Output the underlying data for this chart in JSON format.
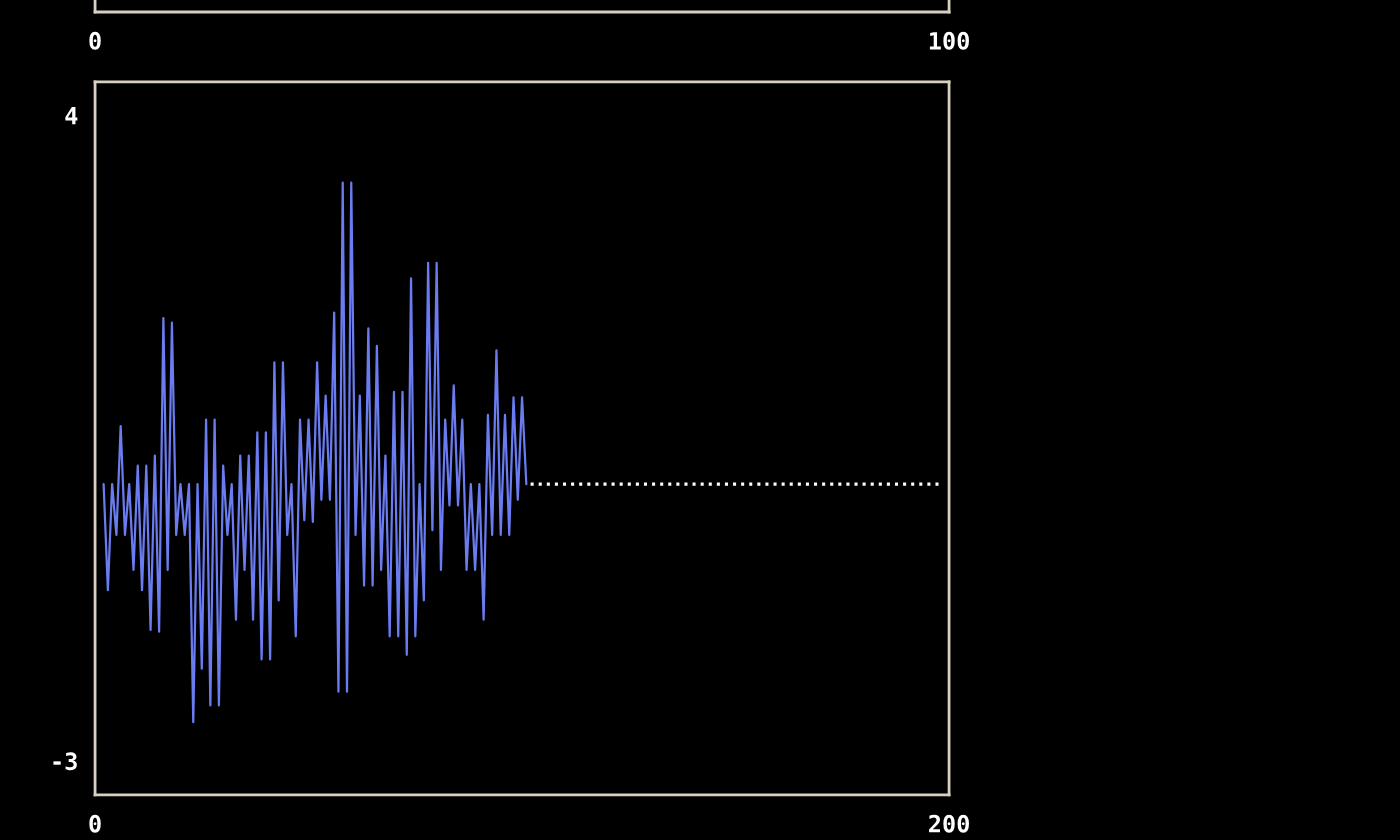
{
  "chart_data": [
    {
      "type": "line",
      "x2lim": [
        0,
        100
      ],
      "x2ticks": [
        0,
        100
      ],
      "xlim": [
        0,
        200
      ],
      "ylim": [
        -3.37,
        4.36
      ],
      "xticks": [
        0,
        200
      ],
      "yticks": [
        -3,
        4
      ],
      "grid": false,
      "legend": false,
      "series": [
        {
          "color": "#6b7cf0",
          "x": [
            2,
            3,
            4,
            5,
            6,
            7,
            8,
            9,
            10,
            11,
            12,
            13,
            14,
            15,
            16,
            17,
            18,
            19,
            20,
            21,
            22,
            23,
            24,
            25,
            26,
            27,
            28,
            29,
            30,
            31,
            32,
            33,
            34,
            35,
            36,
            37,
            38,
            39,
            40,
            41,
            42,
            43,
            44,
            45,
            46,
            47,
            48,
            49,
            50,
            51,
            52,
            53,
            54,
            55,
            56,
            57,
            58,
            59,
            60,
            61,
            62,
            63,
            64,
            65,
            66,
            67,
            68,
            69,
            70,
            71,
            72,
            73,
            74,
            75,
            76,
            77,
            78,
            79,
            80,
            81,
            82,
            83,
            84,
            85,
            86,
            87,
            88,
            89,
            90,
            91,
            92,
            93,
            94,
            95,
            96,
            97,
            98,
            99,
            100,
            101
          ],
          "values": [
            0,
            -1.15,
            0,
            -0.55,
            0.63,
            -0.55,
            0,
            -0.93,
            0.2,
            -1.15,
            0.2,
            -1.58,
            0.31,
            -1.6,
            1.8,
            -0.93,
            1.75,
            -0.55,
            0,
            -0.55,
            0,
            -2.58,
            0,
            -2.0,
            0.7,
            -2.4,
            0.7,
            -2.4,
            0.2,
            -0.55,
            0,
            -1.47,
            0.31,
            -0.93,
            0.31,
            -1.47,
            0.56,
            -1.9,
            0.56,
            -1.9,
            1.32,
            -1.26,
            1.32,
            -0.55,
            0,
            -1.65,
            0.7,
            -0.39,
            0.7,
            -0.41,
            1.32,
            -0.17,
            0.96,
            -0.17,
            1.86,
            -2.25,
            3.27,
            -2.25,
            3.27,
            -0.55,
            0.96,
            -1.1,
            1.69,
            -1.1,
            1.5,
            -0.93,
            0.31,
            -1.65,
            1.0,
            -1.65,
            1.0,
            -1.85,
            2.23,
            -1.65,
            0,
            -1.26,
            2.4,
            -0.5,
            2.4,
            -0.93,
            0.7,
            -0.23,
            1.07,
            -0.23,
            0.7,
            -0.93,
            0,
            -0.93,
            0,
            -1.47,
            0.75,
            -0.55,
            1.45,
            -0.55,
            0.75,
            -0.55,
            0.94,
            -0.17,
            0.94,
            0
          ]
        },
        {
          "color": "#ffffff",
          "x": [
            102,
            198
          ],
          "values": [
            0,
            0
          ],
          "line_style": "dotted"
        }
      ]
    }
  ]
}
